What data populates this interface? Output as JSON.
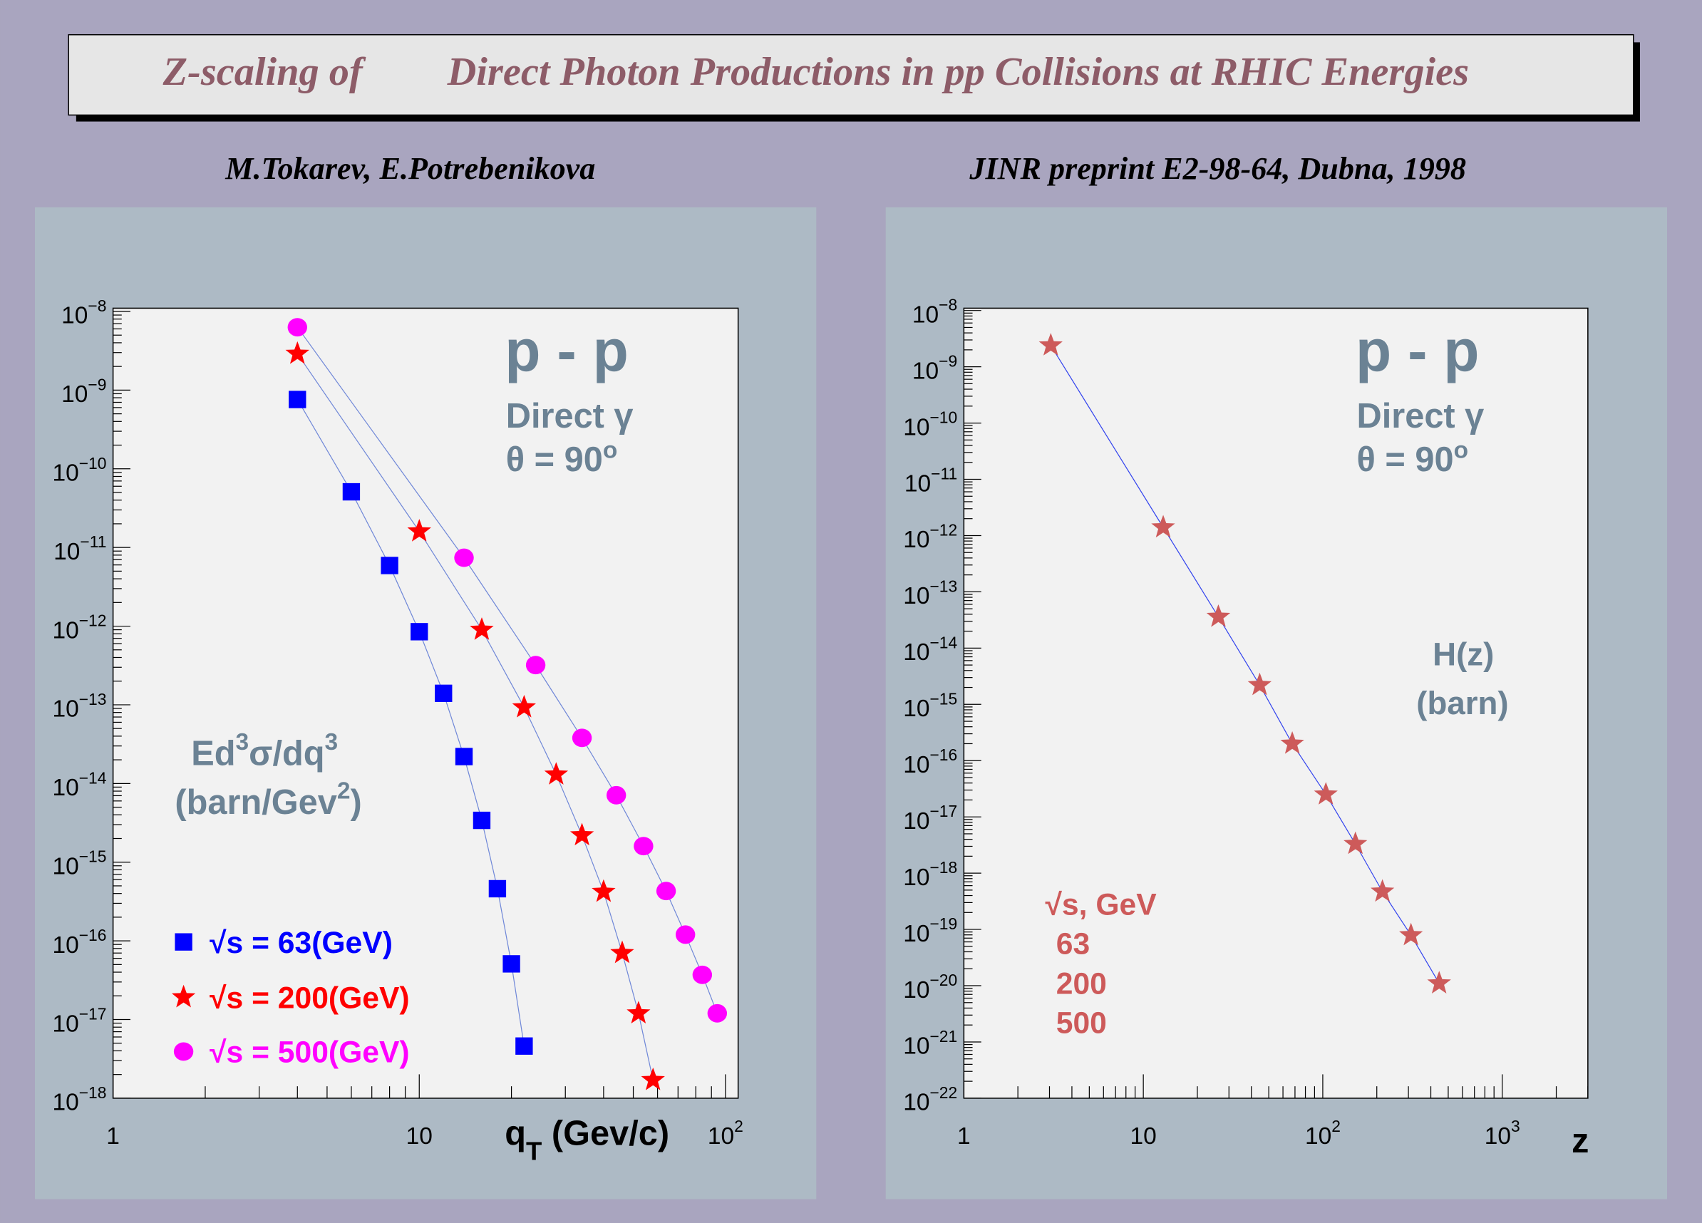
{
  "title": {
    "part1": "Z-scaling of",
    "part2": "Direct Photon Productions in pp Collisions at RHIC Energies"
  },
  "authors": "M.Tokarev, E.Potrebenikova",
  "reference": "JINR preprint E2-98-64, Dubna, 1998",
  "colors": {
    "background": "#a9a5bf",
    "pad": "#adbac5",
    "frame": "#f2f2f2",
    "title_box": "#e6e6e6",
    "title_text": "#8d5c68",
    "annotation": "#6b8294",
    "curve": "#7088d8"
  },
  "chart_data": [
    {
      "type": "scatter",
      "x_scale": "log",
      "y_scale": "log",
      "xlim": [
        1,
        110
      ],
      "ylim": [
        1e-18,
        1.1e-08
      ],
      "grid": false,
      "legend_placement": "bottom-left",
      "xlabel": {
        "main": "q",
        "sub": "T",
        "rest": " (Gev/c)"
      },
      "ylabel": {
        "line1": "Ed",
        "sup1": "3",
        "mid": "σ/dq",
        "sup2": "3",
        "line2": "(barn/Gev",
        "sup3": "2",
        "close": ")"
      },
      "annotations": {
        "system": "p - p",
        "process": "Direct γ",
        "angle": "θ = 90",
        "degree": "o"
      },
      "x_ticks": [
        {
          "value": 1,
          "base": "1",
          "exp": ""
        },
        {
          "value": 10,
          "base": "10",
          "exp": ""
        },
        {
          "value": 100,
          "base": "10",
          "exp": "2"
        }
      ],
      "y_ticks": [
        {
          "value": 1e-08,
          "base": "10",
          "exp": "−8"
        },
        {
          "value": 1e-09,
          "base": "10",
          "exp": "−9"
        },
        {
          "value": 1e-10,
          "base": "10",
          "exp": "−10"
        },
        {
          "value": 1e-11,
          "base": "10",
          "exp": "−11"
        },
        {
          "value": 1e-12,
          "base": "10",
          "exp": "−12"
        },
        {
          "value": 1e-13,
          "base": "10",
          "exp": "−13"
        },
        {
          "value": 1e-14,
          "base": "10",
          "exp": "−14"
        },
        {
          "value": 1e-15,
          "base": "10",
          "exp": "−15"
        },
        {
          "value": 1e-16,
          "base": "10",
          "exp": "−16"
        },
        {
          "value": 1e-17,
          "base": "10",
          "exp": "−17"
        },
        {
          "value": 1e-18,
          "base": "10",
          "exp": "−18"
        }
      ],
      "series": [
        {
          "name": "√s = 63(GeV)",
          "marker": "square",
          "color": "#0000ff",
          "x": [
            4,
            6,
            8,
            10,
            12,
            14,
            16,
            18,
            20,
            22
          ],
          "y": [
            7.6e-10,
            5.1e-11,
            5.9e-12,
            8.5e-13,
            1.4e-13,
            2.2e-14,
            3.4e-15,
            4.6e-16,
            5.1e-17,
            4.6e-18
          ]
        },
        {
          "name": "√s = 200(GeV)",
          "marker": "star",
          "color": "#ff0000",
          "x": [
            4,
            10,
            16,
            22,
            28,
            34,
            40,
            46,
            52,
            58
          ],
          "y": [
            2.9e-09,
            1.6e-11,
            9e-13,
            9.3e-14,
            1.3e-14,
            2.2e-15,
            4.2e-16,
            7e-17,
            1.2e-17,
            1.7e-18
          ]
        },
        {
          "name": "√s = 500(GeV)",
          "marker": "circle",
          "color": "#ff00ff",
          "x": [
            4,
            14,
            24,
            34,
            44,
            54,
            64,
            74,
            84,
            94
          ],
          "y": [
            6.3e-09,
            7.4e-12,
            3.2e-13,
            3.8e-14,
            7.1e-15,
            1.6e-15,
            4.3e-16,
            1.2e-16,
            3.7e-17,
            1.2e-17
          ]
        }
      ]
    },
    {
      "type": "scatter",
      "x_scale": "log",
      "y_scale": "log",
      "xlim": [
        1,
        3000
      ],
      "ylim": [
        1e-22,
        1.1e-08
      ],
      "grid": false,
      "legend_placement": "bottom-left",
      "xlabel": {
        "main": "z"
      },
      "ylabel": {
        "line1": "H(z)",
        "line2": "(barn)"
      },
      "annotations": {
        "system": "p - p",
        "process": "Direct γ",
        "angle": "θ = 90",
        "degree": "o"
      },
      "legend": {
        "header": "√s, GeV",
        "entries": [
          "63",
          "200",
          "500"
        ]
      },
      "x_ticks": [
        {
          "value": 1,
          "base": "1",
          "exp": ""
        },
        {
          "value": 10,
          "base": "10",
          "exp": ""
        },
        {
          "value": 100,
          "base": "10",
          "exp": "2"
        },
        {
          "value": 1000,
          "base": "10",
          "exp": "3"
        }
      ],
      "y_ticks": [
        {
          "value": 1e-08,
          "base": "10",
          "exp": "−8"
        },
        {
          "value": 1e-09,
          "base": "10",
          "exp": "−9"
        },
        {
          "value": 1e-10,
          "base": "10",
          "exp": "−10"
        },
        {
          "value": 1e-11,
          "base": "10",
          "exp": "−11"
        },
        {
          "value": 1e-12,
          "base": "10",
          "exp": "−12"
        },
        {
          "value": 1e-13,
          "base": "10",
          "exp": "−13"
        },
        {
          "value": 1e-14,
          "base": "10",
          "exp": "−14"
        },
        {
          "value": 1e-15,
          "base": "10",
          "exp": "−15"
        },
        {
          "value": 1e-16,
          "base": "10",
          "exp": "−16"
        },
        {
          "value": 1e-17,
          "base": "10",
          "exp": "−17"
        },
        {
          "value": 1e-18,
          "base": "10",
          "exp": "−18"
        },
        {
          "value": 1e-19,
          "base": "10",
          "exp": "−19"
        },
        {
          "value": 1e-20,
          "base": "10",
          "exp": "−20"
        },
        {
          "value": 1e-21,
          "base": "10",
          "exp": "−21"
        },
        {
          "value": 1e-22,
          "base": "10",
          "exp": "−22"
        }
      ],
      "series": [
        {
          "marker": "star",
          "color": "#cd5a5a",
          "x": [
            3.05,
            12.9,
            26.2,
            44.5,
            67.6,
            104,
            152,
            215,
            310,
            445
          ],
          "y": [
            2.4e-09,
            1.4e-12,
            3.6e-14,
            2.2e-15,
            2e-16,
            2.5e-17,
            3.3e-18,
            4.7e-19,
            7.9e-20,
            1.1e-20
          ]
        }
      ]
    }
  ]
}
